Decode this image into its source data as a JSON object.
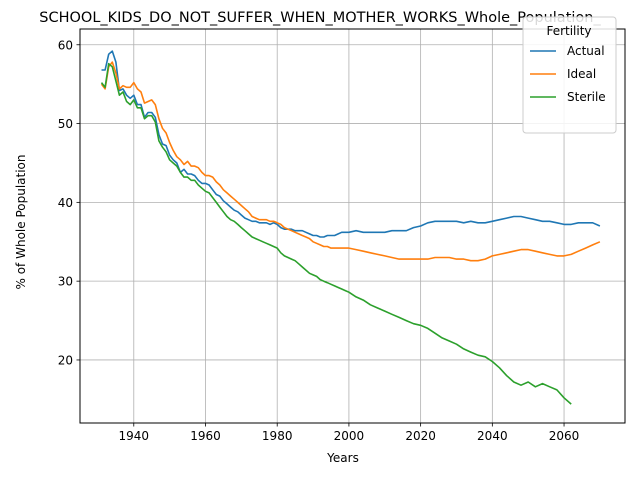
{
  "chart_data": {
    "type": "line",
    "title": "SCHOOL_KIDS_DO_NOT_SUFFER_WHEN_MOTHER_WORKS_Whole_Population_",
    "xlabel": "Years",
    "ylabel": "% of Whole Population",
    "xlim": [
      1925,
      2077
    ],
    "ylim": [
      12,
      62
    ],
    "xticks": [
      1940,
      1960,
      1980,
      2000,
      2020,
      2040,
      2060
    ],
    "yticks": [
      20,
      30,
      40,
      50,
      60
    ],
    "grid": true,
    "legend": {
      "title": "Fertility",
      "placement": "top-right"
    },
    "series": [
      {
        "name": "Actual",
        "color": "#1f77b4",
        "x": [
          1931,
          1932,
          1933,
          1934,
          1935,
          1936,
          1937,
          1938,
          1939,
          1940,
          1941,
          1942,
          1943,
          1944,
          1945,
          1946,
          1947,
          1948,
          1949,
          1950,
          1951,
          1952,
          1953,
          1954,
          1955,
          1956,
          1957,
          1958,
          1959,
          1960,
          1961,
          1962,
          1963,
          1964,
          1965,
          1966,
          1967,
          1968,
          1969,
          1970,
          1971,
          1972,
          1973,
          1974,
          1975,
          1976,
          1977,
          1978,
          1979,
          1980,
          1981,
          1982,
          1983,
          1984,
          1985,
          1986,
          1987,
          1988,
          1989,
          1990,
          1991,
          1992,
          1993,
          1994,
          1995,
          1996,
          1997,
          1998,
          1999,
          2000,
          2002,
          2004,
          2006,
          2008,
          2010,
          2012,
          2014,
          2016,
          2018,
          2020,
          2022,
          2024,
          2026,
          2028,
          2030,
          2032,
          2034,
          2036,
          2038,
          2040,
          2042,
          2044,
          2046,
          2048,
          2050,
          2052,
          2054,
          2056,
          2058,
          2060,
          2062,
          2064,
          2066,
          2068,
          2070
        ],
        "values": [
          56.8,
          56.8,
          58.8,
          59.2,
          57.8,
          54.2,
          54.4,
          53.6,
          53.2,
          53.6,
          52.4,
          52.4,
          50.8,
          51.4,
          51.4,
          50.8,
          48.6,
          47.4,
          47.2,
          46.0,
          45.4,
          45.0,
          43.8,
          44.2,
          43.6,
          43.6,
          43.4,
          42.8,
          42.4,
          42.4,
          42.2,
          41.6,
          41.0,
          40.8,
          40.2,
          39.8,
          39.4,
          39.0,
          38.8,
          38.4,
          38.0,
          37.8,
          37.6,
          37.6,
          37.4,
          37.4,
          37.4,
          37.2,
          37.4,
          37.2,
          36.8,
          36.6,
          36.6,
          36.6,
          36.4,
          36.4,
          36.4,
          36.2,
          36.0,
          35.8,
          35.8,
          35.6,
          35.6,
          35.8,
          35.8,
          35.8,
          36.0,
          36.2,
          36.2,
          36.2,
          36.4,
          36.2,
          36.2,
          36.2,
          36.2,
          36.4,
          36.4,
          36.4,
          36.8,
          37.0,
          37.4,
          37.6,
          37.6,
          37.6,
          37.6,
          37.4,
          37.6,
          37.4,
          37.4,
          37.6,
          37.8,
          38.0,
          38.2,
          38.2,
          38.0,
          37.8,
          37.6,
          37.6,
          37.4,
          37.2,
          37.2,
          37.4,
          37.4,
          37.4,
          37.0
        ]
      },
      {
        "name": "Ideal",
        "color": "#ff7f0e",
        "x": [
          1931,
          1932,
          1933,
          1934,
          1935,
          1936,
          1937,
          1938,
          1939,
          1940,
          1941,
          1942,
          1943,
          1944,
          1945,
          1946,
          1947,
          1948,
          1949,
          1950,
          1951,
          1952,
          1953,
          1954,
          1955,
          1956,
          1957,
          1958,
          1959,
          1960,
          1961,
          1962,
          1963,
          1964,
          1965,
          1966,
          1967,
          1968,
          1969,
          1970,
          1971,
          1972,
          1973,
          1974,
          1975,
          1976,
          1977,
          1978,
          1979,
          1980,
          1981,
          1982,
          1983,
          1984,
          1985,
          1986,
          1987,
          1988,
          1989,
          1990,
          1991,
          1992,
          1993,
          1994,
          1995,
          1996,
          1997,
          1998,
          1999,
          2000,
          2002,
          2004,
          2006,
          2008,
          2010,
          2012,
          2014,
          2016,
          2018,
          2020,
          2022,
          2024,
          2026,
          2028,
          2030,
          2032,
          2034,
          2036,
          2038,
          2040,
          2042,
          2044,
          2046,
          2048,
          2050,
          2052,
          2054,
          2056,
          2058,
          2060,
          2062,
          2064,
          2066,
          2068,
          2070
        ],
        "values": [
          55.0,
          54.4,
          57.2,
          57.8,
          56.4,
          54.4,
          54.8,
          54.6,
          54.6,
          55.2,
          54.4,
          54.0,
          52.6,
          52.8,
          53.0,
          52.4,
          50.6,
          49.4,
          48.8,
          47.6,
          46.6,
          45.8,
          45.4,
          44.8,
          45.2,
          44.6,
          44.6,
          44.4,
          43.8,
          43.4,
          43.4,
          43.2,
          42.6,
          42.2,
          41.6,
          41.2,
          40.8,
          40.4,
          40.0,
          39.6,
          39.2,
          38.8,
          38.2,
          38.0,
          37.8,
          37.8,
          37.8,
          37.6,
          37.6,
          37.4,
          37.2,
          36.8,
          36.6,
          36.4,
          36.2,
          36.0,
          35.8,
          35.6,
          35.4,
          35.0,
          34.8,
          34.6,
          34.4,
          34.4,
          34.2,
          34.2,
          34.2,
          34.2,
          34.2,
          34.2,
          34.0,
          33.8,
          33.6,
          33.4,
          33.2,
          33.0,
          32.8,
          32.8,
          32.8,
          32.8,
          32.8,
          33.0,
          33.0,
          33.0,
          32.8,
          32.8,
          32.6,
          32.6,
          32.8,
          33.2,
          33.4,
          33.6,
          33.8,
          34.0,
          34.0,
          33.8,
          33.6,
          33.4,
          33.2,
          33.2,
          33.4,
          33.8,
          34.2,
          34.6,
          35.0
        ]
      },
      {
        "name": "Sterile",
        "color": "#2ca02c",
        "x": [
          1931,
          1932,
          1933,
          1934,
          1935,
          1936,
          1937,
          1938,
          1939,
          1940,
          1941,
          1942,
          1943,
          1944,
          1945,
          1946,
          1947,
          1948,
          1949,
          1950,
          1951,
          1952,
          1953,
          1954,
          1955,
          1956,
          1957,
          1958,
          1959,
          1960,
          1961,
          1962,
          1963,
          1964,
          1965,
          1966,
          1967,
          1968,
          1969,
          1970,
          1971,
          1972,
          1973,
          1974,
          1975,
          1976,
          1977,
          1978,
          1979,
          1980,
          1981,
          1982,
          1983,
          1984,
          1985,
          1986,
          1987,
          1988,
          1989,
          1990,
          1991,
          1992,
          1993,
          1994,
          1995,
          1996,
          1997,
          1998,
          1999,
          2000,
          2002,
          2004,
          2006,
          2008,
          2010,
          2012,
          2014,
          2016,
          2018,
          2020,
          2022,
          2024,
          2026,
          2028,
          2030,
          2032,
          2034,
          2036,
          2038,
          2040,
          2042,
          2044,
          2046,
          2048,
          2050,
          2052,
          2054,
          2056,
          2058,
          2060,
          2062
        ],
        "values": [
          55.2,
          54.6,
          57.6,
          57.2,
          55.4,
          53.6,
          54.0,
          52.8,
          52.4,
          53.0,
          52.0,
          52.0,
          50.6,
          51.0,
          51.0,
          50.2,
          47.8,
          47.0,
          46.4,
          45.4,
          45.0,
          44.6,
          43.8,
          43.2,
          43.2,
          42.8,
          42.8,
          42.2,
          41.8,
          41.4,
          41.2,
          40.6,
          40.0,
          39.4,
          38.8,
          38.2,
          37.8,
          37.6,
          37.2,
          36.8,
          36.4,
          36.0,
          35.6,
          35.4,
          35.2,
          35.0,
          34.8,
          34.6,
          34.4,
          34.2,
          33.6,
          33.2,
          33.0,
          32.8,
          32.6,
          32.2,
          31.8,
          31.4,
          31.0,
          30.8,
          30.6,
          30.2,
          30.0,
          29.8,
          29.6,
          29.4,
          29.2,
          29.0,
          28.8,
          28.6,
          28.0,
          27.6,
          27.0,
          26.6,
          26.2,
          25.8,
          25.4,
          25.0,
          24.6,
          24.4,
          24.0,
          23.4,
          22.8,
          22.4,
          22.0,
          21.4,
          21.0,
          20.6,
          20.4,
          19.8,
          19.0,
          18.0,
          17.2,
          16.8,
          17.2,
          16.6,
          17.0,
          16.6,
          16.2,
          15.2,
          14.4
        ]
      }
    ]
  }
}
